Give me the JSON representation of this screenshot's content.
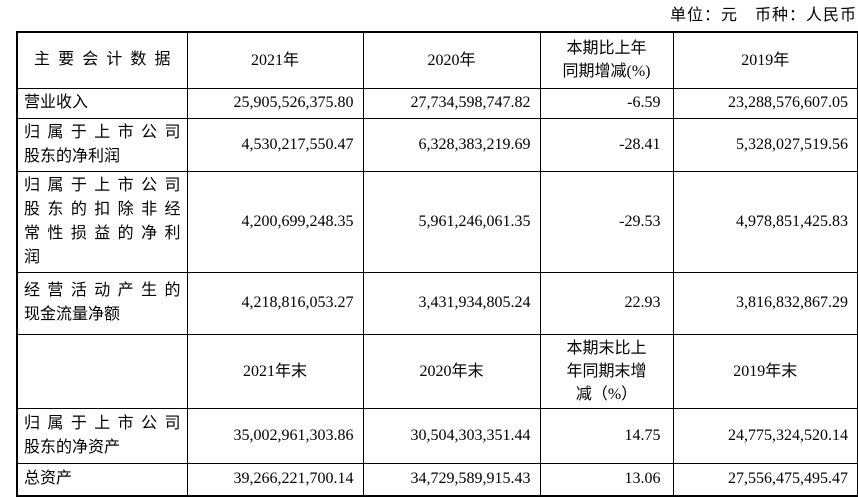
{
  "meta": {
    "unit_caption": "单位：元　币种：人民币"
  },
  "table": {
    "columns": {
      "main": "主要会计数据",
      "y2021": "2021年",
      "y2020": "2020年",
      "change": "本期比上年\n同期增减(%)",
      "y2019": "2019年"
    },
    "period_rows": [
      {
        "label": "营业收入",
        "y2021": "25,905,526,375.80",
        "y2020": "27,734,598,747.82",
        "change": "-6.59",
        "y2019": "23,288,576,607.05"
      },
      {
        "label": "归属于上市公司\n股东的净利润",
        "y2021": "4,530,217,550.47",
        "y2020": "6,328,383,219.69",
        "change": "-28.41",
        "y2019": "5,328,027,519.56"
      },
      {
        "label": "归属于上市公司\n股东的扣除非经\n常性损益的净利\n润",
        "y2021": "4,200,699,248.35",
        "y2020": "5,961,246,061.35",
        "change": "-29.53",
        "y2019": "4,978,851,425.83"
      },
      {
        "label": "经营活动产生的\n现金流量净额",
        "y2021": "4,218,816,053.27",
        "y2020": "3,431,934,805.24",
        "change": "22.93",
        "y2019": "3,816,832,867.29"
      }
    ],
    "subheader": {
      "main": "",
      "y2021": "2021年末",
      "y2020": "2020年末",
      "change": "本期末比上\n年同期末增\n减（%）",
      "y2019": "2019年末"
    },
    "yearend_rows": [
      {
        "label": "归属于上市公司\n股东的净资产",
        "y2021": "35,002,961,303.86",
        "y2020": "30,504,303,351.44",
        "change": "14.75",
        "y2019": "24,775,324,520.14"
      },
      {
        "label": "总资产",
        "y2021": "39,266,221,700.14",
        "y2020": "34,729,589,915.43",
        "change": "13.06",
        "y2019": "27,556,475,495.47"
      }
    ]
  }
}
